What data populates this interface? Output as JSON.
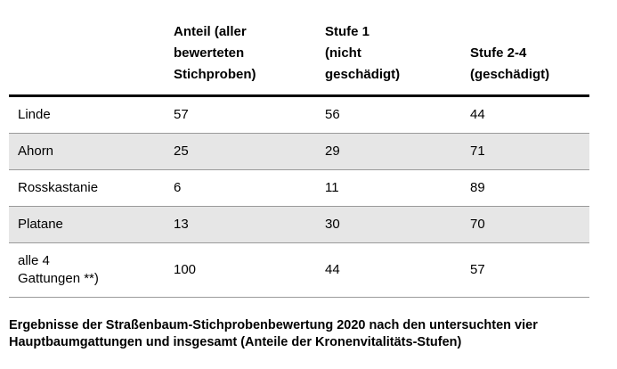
{
  "chart_data": {
    "type": "table",
    "columns": [
      "",
      "Anteil (aller\nbewerteten\nStichproben)",
      "Stufe 1\n(nicht\ngeschädigt)",
      "Stufe 2-4\n(geschädigt)"
    ],
    "rows": [
      {
        "label": "Linde",
        "values": [
          "57",
          "56",
          "44"
        ]
      },
      {
        "label": "Ahorn",
        "values": [
          "25",
          "29",
          "71"
        ]
      },
      {
        "label": "Rosskastanie",
        "values": [
          "6",
          "11",
          "89"
        ]
      },
      {
        "label": "Platane",
        "values": [
          "13",
          "30",
          "70"
        ]
      },
      {
        "label": "alle 4\nGattungen **)",
        "values": [
          "100",
          "44",
          "57"
        ]
      }
    ],
    "shaded_rows": [
      1,
      3
    ],
    "caption": "Ergebnisse der Straßenbaum-Stichprobenbewertung 2020 nach den untersuchten vier\nHauptbaumgattungen und insgesamt (Anteile der Kronenvitalitäts-Stufen)",
    "colors": {
      "row_shade": "#e6e6e6",
      "header_rule": "#000000",
      "row_rule": "#9a9a9a",
      "text": "#000000",
      "background": "#ffffff"
    },
    "layout": {
      "legend": "none",
      "grid": "horizontal-rules-only"
    }
  }
}
